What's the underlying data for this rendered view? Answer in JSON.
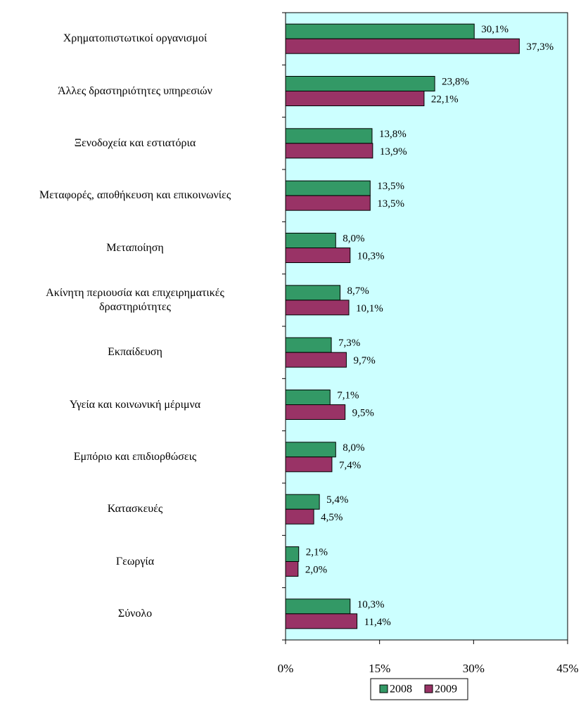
{
  "chart_data": {
    "type": "bar",
    "orientation": "horizontal",
    "categories": [
      "Χρηματοπιστωτικοί οργανισμοί",
      "Άλλες δραστηριότητες υπηρεσιών",
      "Ξενοδοχεία και εστιατόρια",
      "Μεταφορές, αποθήκευση και επικοινωνίες",
      "Μεταποίηση",
      "Ακίνητη περιουσία και επιχειρηματικές\nδραστηριότητες",
      "Εκπαίδευση",
      "Υγεία και κοινωνική μέριμνα",
      "Εμπόριο και επιδιορθώσεις",
      "Κατασκευές",
      "Γεωργία",
      "Σύνολο"
    ],
    "series": [
      {
        "name": "2008",
        "color": "#339966",
        "values": [
          30.1,
          23.8,
          13.8,
          13.5,
          8.0,
          8.7,
          7.3,
          7.1,
          8.0,
          5.4,
          2.1,
          10.3
        ],
        "value_labels": [
          "30,1%",
          "23,8%",
          "13,8%",
          "13,5%",
          "8,0%",
          "8,7%",
          "7,3%",
          "7,1%",
          "8,0%",
          "5,4%",
          "2,1%",
          "10,3%"
        ]
      },
      {
        "name": "2009",
        "color": "#993366",
        "values": [
          37.3,
          22.1,
          13.9,
          13.5,
          10.3,
          10.1,
          9.7,
          9.5,
          7.4,
          4.5,
          2.0,
          11.4
        ],
        "value_labels": [
          "37,3%",
          "22,1%",
          "13,9%",
          "13,5%",
          "10,3%",
          "10,1%",
          "9,7%",
          "9,5%",
          "7,4%",
          "4,5%",
          "2,0%",
          "11,4%"
        ]
      }
    ],
    "xlim": [
      0,
      45
    ],
    "xticks": [
      {
        "value": 0,
        "label": "0%"
      },
      {
        "value": 15,
        "label": "15%"
      },
      {
        "value": 30,
        "label": "30%"
      },
      {
        "value": 45,
        "label": "45%"
      }
    ],
    "plot_background": "#ccffff",
    "legend": "bottom"
  }
}
